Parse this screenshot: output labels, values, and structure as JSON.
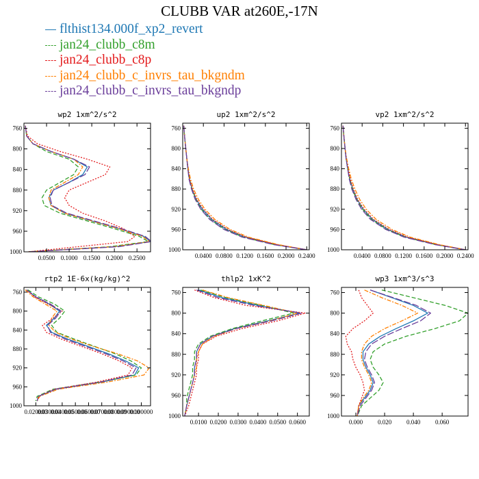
{
  "title": "CLUBB VAR at260E,-17N",
  "legend": [
    {
      "label": "flthist134.000f_xp2_revert",
      "color": "#1f78b4",
      "dash": "solid"
    },
    {
      "label": "jan24_clubb_c8m",
      "color": "#33a02c",
      "dash": "dash"
    },
    {
      "label": "jan24_clubb_c8p",
      "color": "#e31a1c",
      "dash": "dot"
    },
    {
      "label": "jan24_clubb_c_invrs_tau_bkgndm",
      "color": "#ff7f00",
      "dash": "dashdot"
    },
    {
      "label": "jan24_clubb_c_invrs_tau_bkgndp",
      "color": "#6a3d9a",
      "dash": "longdash"
    }
  ],
  "chart_data": [
    {
      "type": "line",
      "title": "wp2  1xm^2/s^2",
      "xlim": [
        0.0,
        0.28
      ],
      "ylim": [
        1000,
        750
      ],
      "xticks": [
        0.05,
        0.1,
        0.15,
        0.2,
        0.25
      ],
      "xtick_labels": [
        "0.0500",
        "0.1000",
        "0.1500",
        "0.2000",
        "0.2500"
      ],
      "yticks": [
        760,
        800,
        840,
        880,
        920,
        960,
        1000
      ],
      "y": [
        755,
        775,
        790,
        805,
        820,
        835,
        850,
        865,
        880,
        895,
        910,
        925,
        940,
        955,
        970,
        980,
        990,
        1000
      ],
      "series": [
        {
          "name": "flthist134.000f_xp2_revert",
          "x": [
            0.003,
            0.006,
            0.02,
            0.06,
            0.11,
            0.14,
            0.13,
            0.1,
            0.065,
            0.055,
            0.06,
            0.09,
            0.15,
            0.21,
            0.265,
            0.28,
            0.2,
            0.01
          ]
        },
        {
          "name": "jan24_clubb_c8m",
          "x": [
            0.003,
            0.006,
            0.02,
            0.05,
            0.1,
            0.12,
            0.11,
            0.08,
            0.05,
            0.04,
            0.045,
            0.08,
            0.14,
            0.2,
            0.255,
            0.275,
            0.19,
            0.01
          ]
        },
        {
          "name": "jan24_clubb_c8p",
          "x": [
            0.003,
            0.008,
            0.03,
            0.08,
            0.14,
            0.19,
            0.18,
            0.14,
            0.1,
            0.09,
            0.1,
            0.13,
            0.18,
            0.22,
            0.245,
            0.23,
            0.12,
            0.01
          ]
        },
        {
          "name": "jan24_clubb_c_invrs_tau_bkgndm",
          "x": [
            0.003,
            0.006,
            0.02,
            0.06,
            0.11,
            0.13,
            0.12,
            0.09,
            0.06,
            0.055,
            0.06,
            0.09,
            0.15,
            0.21,
            0.262,
            0.278,
            0.2,
            0.01
          ]
        },
        {
          "name": "jan24_clubb_c_invrs_tau_bkgndp",
          "x": [
            0.003,
            0.006,
            0.02,
            0.06,
            0.11,
            0.145,
            0.135,
            0.1,
            0.065,
            0.058,
            0.062,
            0.095,
            0.155,
            0.215,
            0.268,
            0.282,
            0.21,
            0.01
          ]
        }
      ]
    },
    {
      "type": "line",
      "title": "up2  1xm^2/s^2",
      "xlim": [
        0.0,
        0.245
      ],
      "ylim": [
        1000,
        750
      ],
      "xticks": [
        0.04,
        0.08,
        0.12,
        0.16,
        0.2,
        0.24
      ],
      "xtick_labels": [
        "0.0400",
        "0.0800",
        "0.1200",
        "0.1600",
        "0.2000",
        "0.2400"
      ],
      "yticks": [
        760,
        800,
        840,
        880,
        920,
        960,
        1000
      ],
      "y": [
        755,
        780,
        800,
        820,
        840,
        860,
        880,
        900,
        920,
        940,
        960,
        975,
        990,
        1000
      ],
      "series": [
        {
          "name": "flthist134.000f_xp2_revert",
          "x": [
            0.002,
            0.004,
            0.006,
            0.008,
            0.01,
            0.013,
            0.018,
            0.026,
            0.038,
            0.056,
            0.085,
            0.12,
            0.18,
            0.24
          ]
        },
        {
          "name": "jan24_clubb_c8m",
          "x": [
            0.002,
            0.004,
            0.006,
            0.008,
            0.01,
            0.013,
            0.018,
            0.025,
            0.036,
            0.053,
            0.082,
            0.117,
            0.178,
            0.24
          ]
        },
        {
          "name": "jan24_clubb_c8p",
          "x": [
            0.002,
            0.004,
            0.006,
            0.008,
            0.01,
            0.013,
            0.019,
            0.027,
            0.04,
            0.058,
            0.088,
            0.123,
            0.183,
            0.24
          ]
        },
        {
          "name": "jan24_clubb_c_invrs_tau_bkgndm",
          "x": [
            0.002,
            0.004,
            0.006,
            0.008,
            0.011,
            0.015,
            0.021,
            0.03,
            0.043,
            0.062,
            0.092,
            0.127,
            0.186,
            0.24
          ]
        },
        {
          "name": "jan24_clubb_c_invrs_tau_bkgndp",
          "x": [
            0.002,
            0.004,
            0.006,
            0.008,
            0.01,
            0.012,
            0.017,
            0.024,
            0.035,
            0.052,
            0.08,
            0.115,
            0.177,
            0.24
          ]
        }
      ]
    },
    {
      "type": "line",
      "title": "vp2  1xm^2/s^2",
      "xlim": [
        0.0,
        0.245
      ],
      "ylim": [
        1000,
        750
      ],
      "xticks": [
        0.04,
        0.08,
        0.12,
        0.16,
        0.2,
        0.24
      ],
      "xtick_labels": [
        "0.0400",
        "0.0800",
        "0.1200",
        "0.1600",
        "0.2000",
        "0.2400"
      ],
      "yticks": [
        760,
        800,
        840,
        880,
        920,
        960,
        1000
      ],
      "y": [
        755,
        780,
        800,
        820,
        840,
        860,
        880,
        900,
        920,
        940,
        960,
        975,
        990,
        1000
      ],
      "series": [
        {
          "name": "flthist134.000f_xp2_revert",
          "x": [
            0.003,
            0.005,
            0.007,
            0.009,
            0.012,
            0.016,
            0.022,
            0.03,
            0.042,
            0.06,
            0.09,
            0.125,
            0.185,
            0.24
          ]
        },
        {
          "name": "jan24_clubb_c8m",
          "x": [
            0.003,
            0.005,
            0.007,
            0.009,
            0.012,
            0.016,
            0.021,
            0.029,
            0.041,
            0.058,
            0.088,
            0.123,
            0.183,
            0.24
          ]
        },
        {
          "name": "jan24_clubb_c8p",
          "x": [
            0.003,
            0.005,
            0.007,
            0.009,
            0.013,
            0.017,
            0.023,
            0.031,
            0.044,
            0.062,
            0.093,
            0.128,
            0.187,
            0.24
          ]
        },
        {
          "name": "jan24_clubb_c_invrs_tau_bkgndm",
          "x": [
            0.003,
            0.005,
            0.007,
            0.01,
            0.014,
            0.019,
            0.026,
            0.035,
            0.048,
            0.067,
            0.098,
            0.133,
            0.19,
            0.24
          ]
        },
        {
          "name": "jan24_clubb_c_invrs_tau_bkgndp",
          "x": [
            0.003,
            0.005,
            0.007,
            0.009,
            0.012,
            0.015,
            0.02,
            0.028,
            0.039,
            0.056,
            0.086,
            0.121,
            0.182,
            0.24
          ]
        }
      ]
    },
    {
      "type": "line",
      "title": "rtp2  1E-6x(kg/kg)^2",
      "xlim": [
        0.011,
        0.107
      ],
      "ylim": [
        1000,
        750
      ],
      "xticks": [
        0.02,
        0.03,
        0.04,
        0.05,
        0.06,
        0.07,
        0.08,
        0.09,
        0.1
      ],
      "xtick_labels": [
        "0.020000",
        "0.030000",
        "0.040000",
        "0.050000",
        "0.060000",
        "0.070000",
        "0.080000",
        "0.090000",
        "0.100000"
      ],
      "yticks": [
        760,
        800,
        840,
        880,
        920,
        960,
        1000
      ],
      "y": [
        755,
        770,
        785,
        800,
        815,
        830,
        845,
        860,
        875,
        890,
        905,
        920,
        935,
        950,
        965,
        980,
        990
      ],
      "series": [
        {
          "name": "flthist134.000f_xp2_revert",
          "x": [
            0.013,
            0.02,
            0.03,
            0.038,
            0.034,
            0.028,
            0.032,
            0.045,
            0.06,
            0.075,
            0.088,
            0.098,
            0.095,
            0.07,
            0.035,
            0.022,
            0.021
          ]
        },
        {
          "name": "jan24_clubb_c8m",
          "x": [
            0.014,
            0.022,
            0.034,
            0.042,
            0.038,
            0.032,
            0.036,
            0.05,
            0.065,
            0.08,
            0.092,
            0.1,
            0.096,
            0.068,
            0.033,
            0.021,
            0.02
          ]
        },
        {
          "name": "jan24_clubb_c8p",
          "x": [
            0.013,
            0.019,
            0.029,
            0.04,
            0.033,
            0.025,
            0.028,
            0.04,
            0.055,
            0.07,
            0.083,
            0.093,
            0.09,
            0.066,
            0.034,
            0.022,
            0.021
          ]
        },
        {
          "name": "jan24_clubb_c_invrs_tau_bkgndm",
          "x": [
            0.012,
            0.018,
            0.027,
            0.036,
            0.032,
            0.03,
            0.035,
            0.048,
            0.064,
            0.082,
            0.097,
            0.106,
            0.102,
            0.074,
            0.037,
            0.023,
            0.021
          ]
        },
        {
          "name": "jan24_clubb_c_invrs_tau_bkgndp",
          "x": [
            0.013,
            0.02,
            0.031,
            0.039,
            0.035,
            0.029,
            0.031,
            0.043,
            0.058,
            0.073,
            0.086,
            0.096,
            0.093,
            0.069,
            0.035,
            0.022,
            0.021
          ]
        }
      ]
    },
    {
      "type": "line",
      "title": "thlp2  1xK^2",
      "xlim": [
        0.002,
        0.066
      ],
      "ylim": [
        1000,
        750
      ],
      "xticks": [
        0.01,
        0.02,
        0.03,
        0.04,
        0.05,
        0.06
      ],
      "xtick_labels": [
        "0.0100",
        "0.0200",
        "0.0300",
        "0.0400",
        "0.0500",
        "0.0600"
      ],
      "yticks": [
        760,
        800,
        840,
        880,
        920,
        960,
        1000
      ],
      "y": [
        755,
        770,
        785,
        800,
        815,
        830,
        845,
        860,
        875,
        890,
        905,
        920,
        935,
        950,
        965,
        980,
        1000
      ],
      "series": [
        {
          "name": "flthist134.000f_xp2_revert",
          "x": [
            0.01,
            0.022,
            0.04,
            0.061,
            0.045,
            0.028,
            0.017,
            0.011,
            0.009,
            0.009,
            0.008,
            0.008,
            0.007,
            0.006,
            0.005,
            0.004,
            0.003
          ]
        },
        {
          "name": "jan24_clubb_c8m",
          "x": [
            0.011,
            0.024,
            0.042,
            0.058,
            0.042,
            0.027,
            0.016,
            0.01,
            0.008,
            0.008,
            0.007,
            0.007,
            0.006,
            0.005,
            0.004,
            0.004,
            0.003
          ]
        },
        {
          "name": "jan24_clubb_c8p",
          "x": [
            0.008,
            0.018,
            0.034,
            0.064,
            0.05,
            0.032,
            0.019,
            0.012,
            0.01,
            0.01,
            0.009,
            0.009,
            0.008,
            0.007,
            0.006,
            0.005,
            0.003
          ]
        },
        {
          "name": "jan24_clubb_c_invrs_tau_bkgndm",
          "x": [
            0.012,
            0.025,
            0.043,
            0.06,
            0.046,
            0.029,
            0.018,
            0.012,
            0.01,
            0.009,
            0.009,
            0.008,
            0.007,
            0.006,
            0.005,
            0.004,
            0.003
          ]
        },
        {
          "name": "jan24_clubb_c_invrs_tau_bkgndp",
          "x": [
            0.009,
            0.02,
            0.038,
            0.062,
            0.047,
            0.029,
            0.017,
            0.011,
            0.009,
            0.009,
            0.008,
            0.008,
            0.007,
            0.006,
            0.005,
            0.004,
            0.003
          ]
        }
      ]
    },
    {
      "type": "line",
      "title": "wp3  1xm^3/s^3",
      "xlim": [
        -0.01,
        0.078
      ],
      "ylim": [
        1000,
        750
      ],
      "xticks": [
        0.0,
        0.02,
        0.04,
        0.06
      ],
      "xtick_labels": [
        "0.000",
        "0.020",
        "0.040",
        "0.060"
      ],
      "yticks": [
        760,
        800,
        840,
        880,
        920,
        960,
        1000
      ],
      "y": [
        755,
        770,
        785,
        800,
        815,
        830,
        845,
        860,
        875,
        890,
        905,
        920,
        935,
        950,
        965,
        980,
        1000
      ],
      "series": [
        {
          "name": "flthist134.000f_xp2_revert",
          "x": [
            0.01,
            0.025,
            0.04,
            0.05,
            0.04,
            0.028,
            0.017,
            0.009,
            0.005,
            0.005,
            0.007,
            0.01,
            0.012,
            0.01,
            0.006,
            0.002,
            0.001
          ]
        },
        {
          "name": "jan24_clubb_c8m",
          "x": [
            0.018,
            0.04,
            0.062,
            0.078,
            0.072,
            0.055,
            0.035,
            0.02,
            0.012,
            0.01,
            0.012,
            0.016,
            0.019,
            0.016,
            0.01,
            0.004,
            0.001
          ]
        },
        {
          "name": "jan24_clubb_c8p",
          "x": [
            0.002,
            0.004,
            0.008,
            0.012,
            0.006,
            -0.002,
            -0.007,
            -0.006,
            -0.003,
            -0.002,
            0.0,
            0.003,
            0.005,
            0.006,
            0.004,
            0.002,
            0.001
          ]
        },
        {
          "name": "jan24_clubb_c_invrs_tau_bkgndm",
          "x": [
            0.006,
            0.018,
            0.032,
            0.043,
            0.032,
            0.02,
            0.011,
            0.006,
            0.004,
            0.004,
            0.006,
            0.009,
            0.011,
            0.009,
            0.005,
            0.002,
            0.001
          ]
        },
        {
          "name": "jan24_clubb_c_invrs_tau_bkgndp",
          "x": [
            0.01,
            0.026,
            0.042,
            0.052,
            0.045,
            0.032,
            0.02,
            0.011,
            0.007,
            0.006,
            0.008,
            0.011,
            0.013,
            0.011,
            0.007,
            0.003,
            0.001
          ]
        }
      ]
    }
  ]
}
